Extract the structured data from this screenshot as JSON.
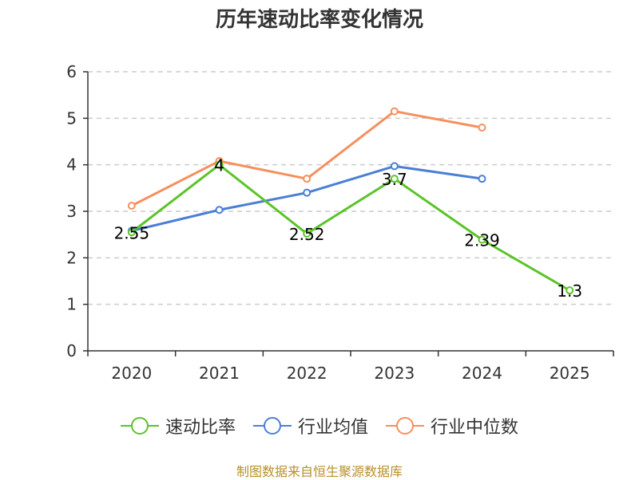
{
  "chart_data": {
    "type": "line",
    "title": "历年速动比率变化情况",
    "categories": [
      "2020",
      "2021",
      "2022",
      "2023",
      "2024",
      "2025"
    ],
    "ylim": [
      0,
      6
    ],
    "yticks": [
      0,
      1,
      2,
      3,
      4,
      5,
      6
    ],
    "grid": "dashed-horizontal",
    "legend_position": "bottom",
    "series": [
      {
        "name": "速动比率",
        "color": "#5bc429",
        "values": [
          2.55,
          4,
          2.52,
          3.7,
          2.39,
          1.3
        ],
        "labels": [
          "2.55",
          "4",
          "2.52",
          "3.7",
          "2.39",
          "1.3"
        ]
      },
      {
        "name": "行业均值",
        "color": "#4a7fd6",
        "values": [
          2.58,
          3.03,
          3.4,
          3.97,
          3.7,
          null
        ]
      },
      {
        "name": "行业中位数",
        "color": "#f5905d",
        "values": [
          3.12,
          4.08,
          3.7,
          5.15,
          4.8,
          null
        ]
      }
    ]
  },
  "footer": {
    "source": "制图数据来自恒生聚源数据库"
  }
}
